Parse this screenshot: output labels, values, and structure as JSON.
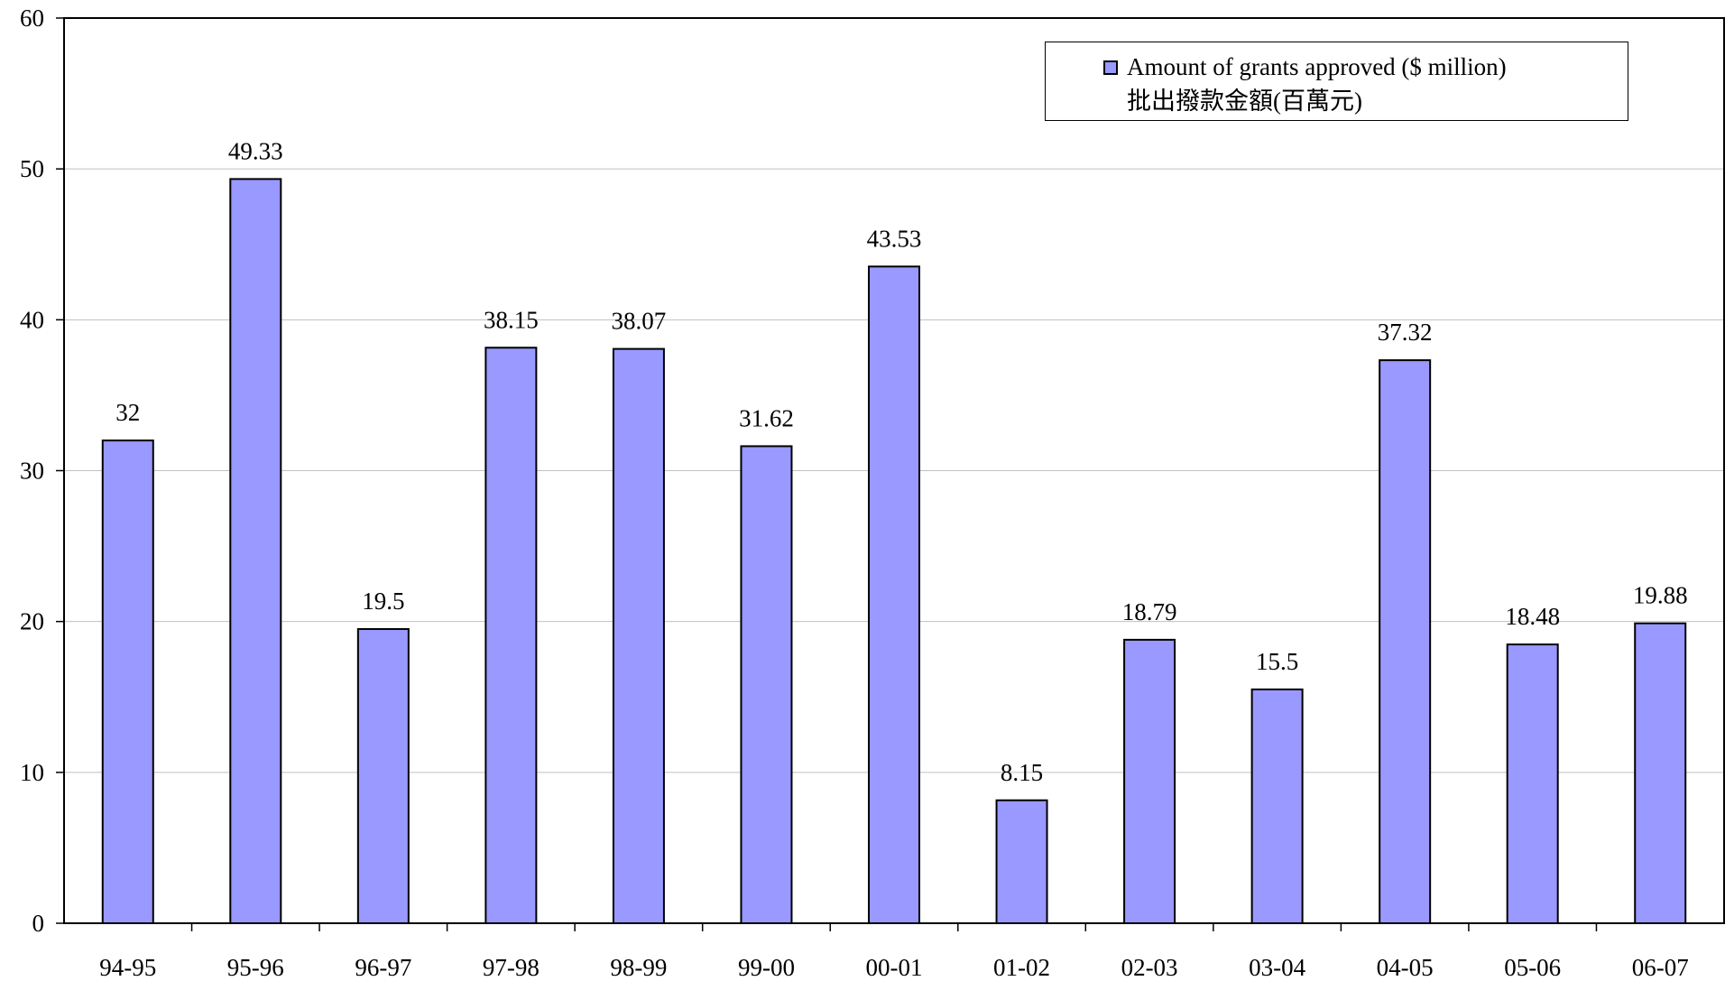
{
  "chart_data": {
    "type": "bar",
    "categories": [
      "94-95",
      "95-96",
      "96-97",
      "97-98",
      "98-99",
      "99-00",
      "00-01",
      "01-02",
      "02-03",
      "03-04",
      "04-05",
      "05-06",
      "06-07"
    ],
    "series": [
      {
        "name": "Amount of grants approved ($ million)",
        "name_zh": "批出撥款金額(百萬元)",
        "values": [
          32,
          49.33,
          19.5,
          38.15,
          38.07,
          31.62,
          43.53,
          8.15,
          18.79,
          15.5,
          37.32,
          18.48,
          19.88
        ],
        "labels": [
          "32",
          "49.33",
          "19.5",
          "38.15",
          "38.07",
          "31.62",
          "43.53",
          "8.15",
          "18.79",
          "15.5",
          "37.32",
          "18.48",
          "19.88"
        ],
        "color": "#9999ff"
      }
    ],
    "ylim": [
      0,
      60
    ],
    "yticks": [
      "0",
      "10",
      "20",
      "30",
      "40",
      "50",
      "60"
    ],
    "grid": "horizontal",
    "legend_position": "top-right"
  }
}
